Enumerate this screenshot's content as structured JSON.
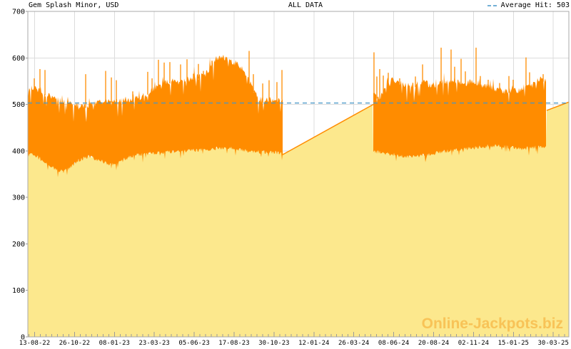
{
  "header": {
    "title": "Gem Splash Minor, USD",
    "range_label": "ALL DATA",
    "legend": {
      "label": "Average Hit: 503"
    }
  },
  "watermark": "Online-Jackpots.biz",
  "colors": {
    "band": "#FF8C00",
    "area_fill": "#FCE88D",
    "average_line": "#4496C8",
    "grid": "#DCDCDC",
    "frame": "#A8A8A8",
    "tickmark": "#9A9A9A",
    "text": "#000000",
    "watermark": "#F39D21"
  },
  "chart_data": {
    "type": "area",
    "title": "Gem Splash Minor, USD",
    "currency": "USD",
    "range_label": "ALL DATA",
    "average_hit": 503,
    "ylim": [
      0,
      700
    ],
    "grid": true,
    "legend_position": "top-right",
    "y_ticks": [
      0,
      100,
      200,
      300,
      400,
      500,
      600,
      700
    ],
    "x_ticks": [
      "13-08-22",
      "26-10-22",
      "08-01-23",
      "23-03-23",
      "05-06-23",
      "17-08-23",
      "30-10-23",
      "12-01-24",
      "26-03-24",
      "08-06-24",
      "20-08-24",
      "02-11-24",
      "15-01-25",
      "30-03-25"
    ],
    "x_tick_start_t": 0.0125,
    "x_tick_step_t": 0.07375,
    "series": [
      {
        "name": "hit-activity-period-1",
        "kind": "band",
        "t_start": 0.0,
        "t_end": 0.471,
        "top_envelope": [
          [
            0,
            537
          ],
          [
            0.021,
            530
          ],
          [
            0.034,
            522
          ],
          [
            0.047,
            515
          ],
          [
            0.061,
            508
          ],
          [
            0.074,
            510
          ],
          [
            0.087,
            502
          ],
          [
            0.1,
            496
          ],
          [
            0.113,
            498
          ],
          [
            0.127,
            502
          ],
          [
            0.14,
            506
          ],
          [
            0.153,
            509
          ],
          [
            0.166,
            506
          ],
          [
            0.175,
            509
          ],
          [
            0.186,
            511
          ],
          [
            0.197,
            513
          ],
          [
            0.207,
            515
          ],
          [
            0.219,
            524
          ],
          [
            0.232,
            532
          ],
          [
            0.245,
            546
          ],
          [
            0.259,
            549
          ],
          [
            0.272,
            551
          ],
          [
            0.285,
            546
          ],
          [
            0.294,
            553
          ],
          [
            0.305,
            556
          ],
          [
            0.315,
            560
          ],
          [
            0.326,
            562
          ],
          [
            0.336,
            578
          ],
          [
            0.344,
            592
          ],
          [
            0.352,
            602
          ],
          [
            0.36,
            606
          ],
          [
            0.368,
            600
          ],
          [
            0.379,
            592
          ],
          [
            0.389,
            585
          ],
          [
            0.397,
            575
          ],
          [
            0.405,
            560
          ],
          [
            0.413,
            540
          ],
          [
            0.421,
            522
          ],
          [
            0.429,
            510
          ],
          [
            0.437,
            508
          ],
          [
            0.447,
            512
          ],
          [
            0.458,
            506
          ],
          [
            0.466,
            510
          ],
          [
            0.471,
            516
          ]
        ],
        "bottom_envelope": [
          [
            0,
            398
          ],
          [
            0.021,
            386
          ],
          [
            0.041,
            369
          ],
          [
            0.054,
            359
          ],
          [
            0.067,
            356
          ],
          [
            0.081,
            368
          ],
          [
            0.094,
            380
          ],
          [
            0.113,
            388
          ],
          [
            0.133,
            379
          ],
          [
            0.153,
            371
          ],
          [
            0.173,
            379
          ],
          [
            0.193,
            390
          ],
          [
            0.212,
            393
          ],
          [
            0.239,
            396
          ],
          [
            0.265,
            398
          ],
          [
            0.292,
            400
          ],
          [
            0.318,
            402
          ],
          [
            0.344,
            405
          ],
          [
            0.371,
            408
          ],
          [
            0.397,
            401
          ],
          [
            0.424,
            398
          ],
          [
            0.45,
            398
          ],
          [
            0.471,
            394
          ]
        ],
        "spikes": [
          [
            0.0119,
            556
          ],
          [
            0.0224,
            576
          ],
          [
            0.0317,
            574
          ],
          [
            0.1069,
            565
          ],
          [
            0.1438,
            572
          ],
          [
            0.1544,
            558
          ],
          [
            0.1636,
            552
          ],
          [
            0.1939,
            528
          ],
          [
            0.2216,
            570
          ],
          [
            0.2296,
            556
          ],
          [
            0.2414,
            596
          ],
          [
            0.252,
            590
          ],
          [
            0.2625,
            591
          ],
          [
            0.2823,
            586
          ],
          [
            0.2942,
            597
          ],
          [
            0.3061,
            566
          ],
          [
            0.3153,
            587
          ],
          [
            0.3245,
            572
          ],
          [
            0.3404,
            594
          ],
          [
            0.409,
            615
          ],
          [
            0.4169,
            565
          ],
          [
            0.4341,
            545
          ],
          [
            0.4459,
            552
          ],
          [
            0.4604,
            548
          ],
          [
            0.4697,
            574
          ]
        ]
      },
      {
        "name": "no-hit-growth-gap",
        "kind": "line",
        "points": [
          [
            0.471,
            392
          ],
          [
            0.6385,
            500
          ]
        ]
      },
      {
        "name": "hit-activity-period-2",
        "kind": "band",
        "t_start": 0.6385,
        "t_end": 0.958,
        "top_envelope": [
          [
            0.6385,
            520
          ],
          [
            0.6477,
            516
          ],
          [
            0.6557,
            520
          ],
          [
            0.6623,
            548
          ],
          [
            0.6742,
            552
          ],
          [
            0.6847,
            550
          ],
          [
            0.6953,
            545
          ],
          [
            0.7058,
            540
          ],
          [
            0.7164,
            542
          ],
          [
            0.7269,
            548
          ],
          [
            0.7375,
            545
          ],
          [
            0.748,
            540
          ],
          [
            0.7586,
            545
          ],
          [
            0.7692,
            550
          ],
          [
            0.7797,
            548
          ],
          [
            0.7903,
            550
          ],
          [
            0.8008,
            548
          ],
          [
            0.8114,
            545
          ],
          [
            0.8219,
            550
          ],
          [
            0.8325,
            545
          ],
          [
            0.8457,
            540
          ],
          [
            0.8588,
            536
          ],
          [
            0.872,
            531
          ],
          [
            0.8852,
            528
          ],
          [
            0.8958,
            532
          ],
          [
            0.9063,
            529
          ],
          [
            0.9169,
            540
          ],
          [
            0.9274,
            536
          ],
          [
            0.938,
            546
          ],
          [
            0.9485,
            556
          ],
          [
            0.958,
            550
          ]
        ],
        "bottom_envelope": [
          [
            0.6385,
            398
          ],
          [
            0.6675,
            394
          ],
          [
            0.6873,
            390
          ],
          [
            0.7071,
            387
          ],
          [
            0.7335,
            391
          ],
          [
            0.7665,
            398
          ],
          [
            0.7995,
            403
          ],
          [
            0.8325,
            408
          ],
          [
            0.8654,
            412
          ],
          [
            0.8918,
            408
          ],
          [
            0.9182,
            405
          ],
          [
            0.938,
            408
          ],
          [
            0.958,
            410
          ]
        ],
        "spikes": [
          [
            0.6398,
            612
          ],
          [
            0.6451,
            560
          ],
          [
            0.6504,
            576
          ],
          [
            0.657,
            562
          ],
          [
            0.6662,
            568
          ],
          [
            0.6873,
            556
          ],
          [
            0.7164,
            560
          ],
          [
            0.7296,
            586
          ],
          [
            0.7639,
            622
          ],
          [
            0.7823,
            618
          ],
          [
            0.7889,
            581
          ],
          [
            0.8008,
            598
          ],
          [
            0.8087,
            571
          ],
          [
            0.8285,
            622
          ],
          [
            0.8364,
            561
          ],
          [
            0.8509,
            553
          ],
          [
            0.872,
            546
          ],
          [
            0.8892,
            561
          ],
          [
            0.8971,
            553
          ],
          [
            0.9208,
            601
          ],
          [
            0.9274,
            569
          ],
          [
            0.9525,
            565
          ]
        ]
      },
      {
        "name": "no-hit-growth-current",
        "kind": "line",
        "points": [
          [
            0.959,
            487
          ],
          [
            1.0,
            505
          ]
        ]
      }
    ]
  }
}
